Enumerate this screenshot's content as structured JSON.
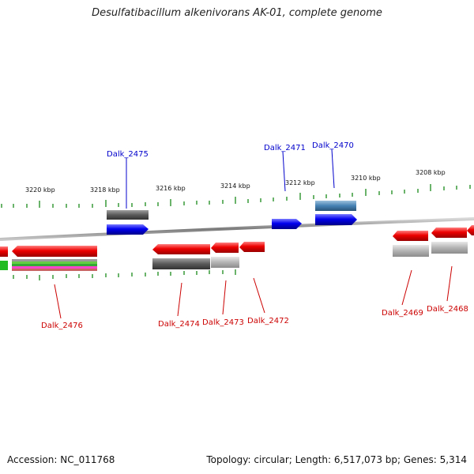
{
  "title": "Desulfatibacillum alkenivorans AK-01, complete genome",
  "footer": {
    "accession": "Accession: NC_011768",
    "topology": "Topology: circular; Length: 6,517,073 bp; Genes: 5,314"
  },
  "scale_labels": [
    "3220 kbp",
    "3218 kbp",
    "3216 kbp",
    "3214 kbp",
    "3212 kbp",
    "3210 kbp",
    "3208 kbp"
  ],
  "gene_labels": {
    "top": [
      "Dalk_2475",
      "Dalk_2471",
      "Dalk_2470"
    ],
    "bottom": [
      "Dalk_2476",
      "Dalk_2474",
      "Dalk_2473",
      "Dalk_2472",
      "Dalk_2469",
      "Dalk_2468"
    ]
  },
  "colors": {
    "forward_cds": "#0000ee",
    "reverse_cds": "#ee0000",
    "top_label": "#0000cc",
    "bottom_label": "#cc0000",
    "tick": "#1a8a1a",
    "backbone": "#8a8a8a"
  }
}
